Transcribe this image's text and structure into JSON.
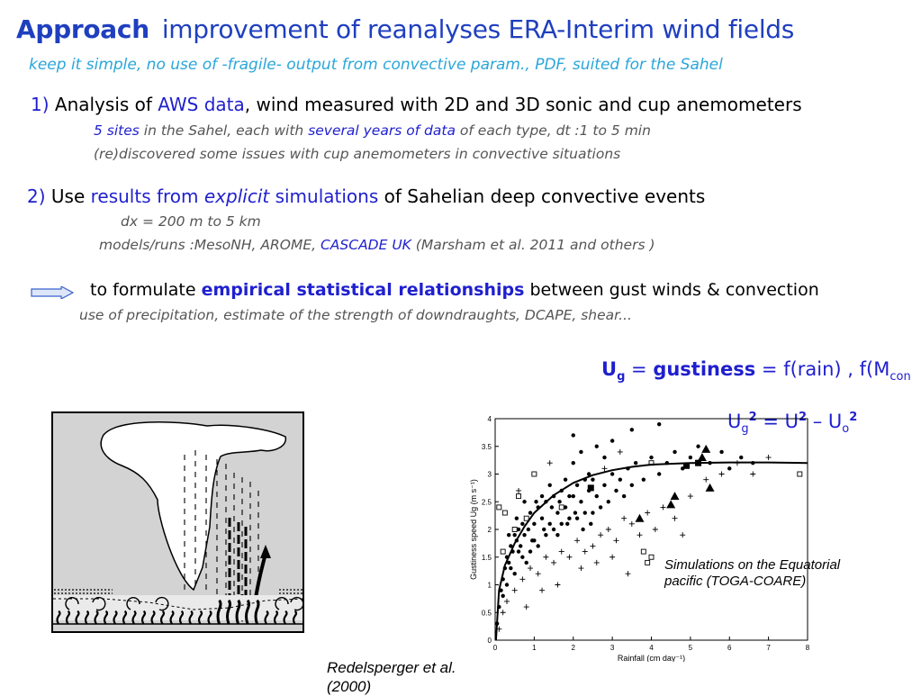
{
  "title": {
    "approach": "Approach",
    "rest": "improvement of reanalyses ERA-Interim wind fields"
  },
  "subtitle": "keep it simple, no use of  -fragile- output from convective param., PDF, suited for the Sahel",
  "point1": {
    "num": "1)",
    "pre": " Analysis of ",
    "aws": "AWS data",
    "post": ", wind measured with 2D and 3D sonic and cup anemometers",
    "sub1_a": "5 sites",
    "sub1_b": " in the Sahel, each with ",
    "sub1_c": "several years of data",
    "sub1_d": " of each type, dt :1 to 5 min",
    "sub2": "(re)discovered some issues with cup anemometers in convective situations"
  },
  "point2": {
    "num": "2)",
    "pre": " Use ",
    "results": "results from ",
    "explicit": "explicit",
    "sims": " simulations",
    "post": " of Sahelian deep convective events",
    "sub1": "dx = 200 m to 5 km",
    "sub2_a": "models/runs :MesoNH, AROME, ",
    "sub2_b": "CASCADE UK",
    "sub2_c": " (Marsham et al. 2011 and others )"
  },
  "point3": {
    "pre": "to formulate ",
    "emp": "empirical statistical relationships",
    "post": " between gust winds & convection",
    "sub": "use of precipitation, estimate of the strength of downdraughts, DCAPE, shear..."
  },
  "gustiness": {
    "u": "U",
    "g": "g",
    "eq": " = ",
    "word": "gustiness",
    "rest": " = f(rain) , f(M",
    "sub": "con"
  },
  "equation": {
    "u1": "U",
    "g": "g",
    "two1": "2",
    "mid": " = U",
    "two2": "2",
    "minus": " – U",
    "o": "o",
    "two3": "2"
  },
  "citation": "Redelsperger et al.\n(2000)",
  "annotation": "Simulations on the Equatorial pacific (TOGA-COARE)",
  "colors": {
    "title_blue": "#1f3fbf",
    "text_blue": "#1f1fcf",
    "light_blue": "#2aa6d9",
    "gray": "#555555"
  },
  "chart_data": {
    "type": "scatter",
    "xlabel": "Rainfall (cm day⁻¹)",
    "ylabel": "Gustiness speed Ug (m s⁻¹)",
    "xlim": [
      0,
      8
    ],
    "ylim": [
      0,
      4
    ],
    "xticks": [
      "0",
      "1",
      "2",
      "3",
      "4",
      "5",
      "6",
      "7",
      "8"
    ],
    "yticks": [
      "0",
      "0.5",
      "1",
      "1.5",
      "2",
      "2.5",
      "3",
      "3.5",
      "4"
    ],
    "grid": false,
    "series": [
      {
        "marker": "dot",
        "values": [
          [
            0.05,
            0.3
          ],
          [
            0.1,
            0.6
          ],
          [
            0.15,
            0.9
          ],
          [
            0.2,
            1.1
          ],
          [
            0.25,
            1.3
          ],
          [
            0.3,
            1.5
          ],
          [
            0.35,
            1.4
          ],
          [
            0.4,
            1.7
          ],
          [
            0.45,
            1.6
          ],
          [
            0.5,
            1.9
          ],
          [
            0.55,
            1.8
          ],
          [
            0.6,
            2.0
          ],
          [
            0.65,
            1.7
          ],
          [
            0.7,
            2.1
          ],
          [
            0.75,
            1.9
          ],
          [
            0.8,
            2.2
          ],
          [
            0.85,
            2.0
          ],
          [
            0.9,
            2.3
          ],
          [
            0.95,
            1.8
          ],
          [
            1.0,
            2.1
          ],
          [
            1.1,
            2.4
          ],
          [
            1.2,
            2.2
          ],
          [
            1.3,
            2.5
          ],
          [
            1.4,
            2.1
          ],
          [
            1.5,
            2.6
          ],
          [
            1.6,
            2.3
          ],
          [
            1.7,
            2.7
          ],
          [
            1.8,
            2.4
          ],
          [
            1.9,
            2.2
          ],
          [
            2.0,
            2.6
          ],
          [
            2.1,
            2.8
          ],
          [
            2.2,
            2.5
          ],
          [
            2.3,
            2.3
          ],
          [
            2.4,
            2.7
          ],
          [
            2.5,
            2.9
          ],
          [
            2.6,
            2.6
          ],
          [
            2.7,
            2.4
          ],
          [
            2.8,
            2.8
          ],
          [
            2.9,
            2.5
          ],
          [
            3.0,
            3.0
          ],
          [
            3.1,
            2.7
          ],
          [
            3.2,
            2.9
          ],
          [
            3.3,
            2.6
          ],
          [
            3.4,
            3.1
          ],
          [
            3.5,
            2.8
          ],
          [
            3.6,
            3.2
          ],
          [
            3.8,
            2.9
          ],
          [
            4.0,
            3.3
          ],
          [
            4.2,
            3.0
          ],
          [
            4.4,
            3.2
          ],
          [
            4.6,
            3.4
          ],
          [
            4.8,
            3.1
          ],
          [
            5.0,
            3.3
          ],
          [
            5.2,
            3.5
          ],
          [
            5.5,
            3.2
          ],
          [
            5.8,
            3.4
          ],
          [
            6.0,
            3.1
          ],
          [
            6.3,
            3.3
          ],
          [
            6.6,
            3.2
          ],
          [
            0.3,
            1.0
          ],
          [
            0.5,
            1.2
          ],
          [
            0.7,
            1.5
          ],
          [
            0.9,
            1.6
          ],
          [
            1.1,
            1.7
          ],
          [
            1.3,
            1.9
          ],
          [
            1.5,
            2.0
          ],
          [
            1.7,
            2.1
          ],
          [
            1.9,
            2.6
          ],
          [
            2.1,
            2.2
          ],
          [
            2.3,
            2.9
          ],
          [
            2.5,
            2.3
          ],
          [
            0.2,
            0.8
          ],
          [
            0.4,
            1.3
          ],
          [
            0.6,
            1.6
          ],
          [
            0.8,
            1.4
          ],
          [
            1.0,
            1.8
          ],
          [
            1.2,
            2.6
          ],
          [
            1.4,
            2.8
          ],
          [
            1.6,
            1.9
          ],
          [
            1.8,
            2.9
          ],
          [
            2.0,
            3.2
          ],
          [
            2.2,
            3.4
          ],
          [
            2.4,
            3.0
          ],
          [
            2.6,
            3.5
          ],
          [
            2.8,
            3.3
          ],
          [
            3.0,
            3.6
          ],
          [
            1.05,
            2.5
          ],
          [
            1.25,
            2.0
          ],
          [
            1.45,
            2.4
          ],
          [
            1.65,
            2.5
          ],
          [
            1.85,
            2.1
          ],
          [
            2.05,
            2.3
          ],
          [
            2.25,
            2.0
          ],
          [
            2.45,
            2.1
          ],
          [
            0.55,
            2.2
          ],
          [
            0.75,
            2.5
          ],
          [
            0.35,
            1.9
          ],
          [
            3.5,
            3.8
          ],
          [
            4.2,
            3.9
          ],
          [
            2.0,
            3.7
          ]
        ]
      },
      {
        "marker": "plus",
        "values": [
          [
            0.1,
            0.2
          ],
          [
            0.2,
            0.5
          ],
          [
            0.3,
            0.7
          ],
          [
            0.5,
            0.9
          ],
          [
            0.7,
            1.1
          ],
          [
            0.9,
            1.3
          ],
          [
            1.1,
            1.2
          ],
          [
            1.3,
            1.5
          ],
          [
            1.5,
            1.4
          ],
          [
            1.7,
            1.6
          ],
          [
            1.9,
            1.5
          ],
          [
            2.1,
            1.8
          ],
          [
            2.3,
            1.6
          ],
          [
            2.5,
            1.7
          ],
          [
            2.7,
            1.9
          ],
          [
            2.9,
            2.0
          ],
          [
            3.1,
            1.8
          ],
          [
            3.3,
            2.2
          ],
          [
            3.5,
            2.1
          ],
          [
            3.7,
            1.9
          ],
          [
            3.9,
            2.3
          ],
          [
            4.1,
            2.0
          ],
          [
            4.3,
            2.4
          ],
          [
            4.6,
            2.2
          ],
          [
            5.0,
            2.6
          ],
          [
            5.4,
            2.9
          ],
          [
            5.8,
            3.0
          ],
          [
            6.2,
            3.2
          ],
          [
            6.6,
            3.0
          ],
          [
            7.0,
            3.3
          ],
          [
            2.2,
            1.3
          ],
          [
            2.6,
            1.4
          ],
          [
            3.0,
            1.5
          ],
          [
            3.4,
            1.2
          ],
          [
            1.6,
            1.0
          ],
          [
            1.2,
            0.9
          ],
          [
            0.8,
            0.6
          ],
          [
            4.8,
            1.9
          ],
          [
            3.2,
            3.4
          ],
          [
            2.8,
            3.1
          ],
          [
            1.4,
            3.2
          ],
          [
            1.0,
            3.0
          ],
          [
            0.6,
            2.7
          ]
        ]
      },
      {
        "marker": "square-open",
        "values": [
          [
            0.2,
            1.6
          ],
          [
            0.25,
            2.3
          ],
          [
            0.5,
            2.0
          ],
          [
            0.6,
            2.6
          ],
          [
            0.8,
            2.2
          ],
          [
            1.0,
            3.0
          ],
          [
            3.9,
            1.4
          ],
          [
            3.8,
            1.6
          ],
          [
            4.0,
            1.5
          ],
          [
            7.8,
            3.0
          ],
          [
            4.0,
            3.2
          ],
          [
            0.1,
            2.4
          ],
          [
            1.7,
            2.4
          ]
        ]
      },
      {
        "marker": "square-filled",
        "values": [
          [
            2.45,
            2.75
          ],
          [
            4.9,
            3.15
          ],
          [
            5.2,
            3.2
          ]
        ]
      },
      {
        "marker": "triangle",
        "values": [
          [
            5.4,
            3.45
          ],
          [
            5.3,
            3.3
          ],
          [
            5.5,
            2.75
          ],
          [
            4.6,
            2.6
          ],
          [
            3.7,
            2.2
          ],
          [
            4.5,
            2.45
          ]
        ]
      },
      {
        "marker": "fit-line",
        "values": [
          [
            0.02,
            0.0
          ],
          [
            0.1,
            0.9
          ],
          [
            0.25,
            1.35
          ],
          [
            0.5,
            1.75
          ],
          [
            0.75,
            2.05
          ],
          [
            1.0,
            2.3
          ],
          [
            1.5,
            2.62
          ],
          [
            2.0,
            2.84
          ],
          [
            2.5,
            2.98
          ],
          [
            3.0,
            3.07
          ],
          [
            3.5,
            3.13
          ],
          [
            4.0,
            3.17
          ],
          [
            5.0,
            3.2
          ],
          [
            6.0,
            3.21
          ],
          [
            7.0,
            3.21
          ],
          [
            8.0,
            3.2
          ]
        ]
      }
    ]
  }
}
